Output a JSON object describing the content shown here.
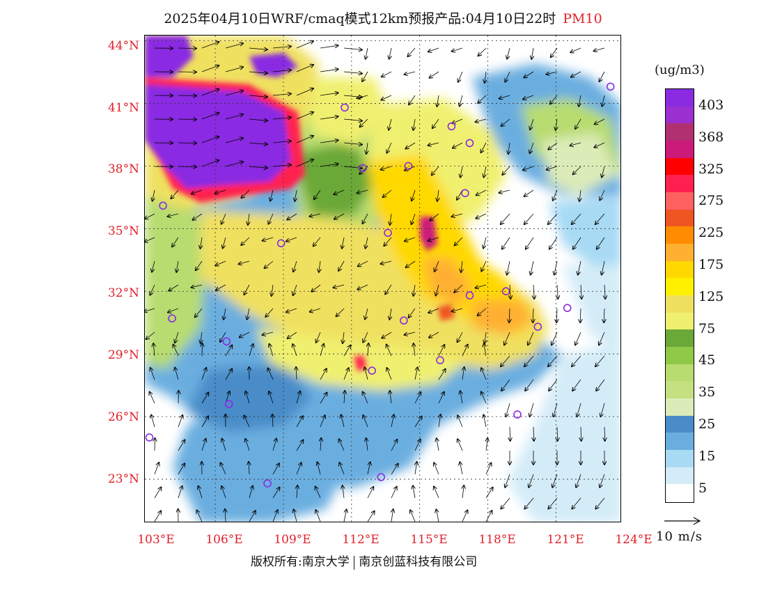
{
  "title": {
    "main": "2025年04月10日WRF/cmaq模式12km预报产品:04月10日22时",
    "pollutant": "PM10"
  },
  "axes": {
    "lat_labels": [
      "44°N",
      "41°N",
      "38°N",
      "35°N",
      "32°N",
      "29°N",
      "26°N",
      "23°N"
    ],
    "lon_labels": [
      "103°E",
      "106°E",
      "109°E",
      "112°E",
      "115°E",
      "118°E",
      "121°E",
      "124°E"
    ]
  },
  "legend": {
    "unit": "(ug/m3)",
    "levels": [
      {
        "label": "403",
        "color": "#8a2be2"
      },
      {
        "label": "368",
        "color": "#b03070"
      },
      {
        "label": "325",
        "color": "#ff1a1a"
      },
      {
        "label": "275",
        "color": "#ff6060"
      },
      {
        "label": "225",
        "color": "#ee5522"
      },
      {
        "label": "175",
        "color": "#ffa020"
      },
      {
        "label": "125",
        "color": "#ffe400"
      },
      {
        "label": "75",
        "color": "#f0f070"
      },
      {
        "label": "45",
        "color": "#68a838"
      },
      {
        "label": "35",
        "color": "#b8dc70"
      },
      {
        "label": "25",
        "color": "#dcecb8"
      },
      {
        "label": "15",
        "color": "#4a8cc8"
      },
      {
        "label": "5",
        "color": "#a8daf4"
      }
    ],
    "swatch_colors": [
      "#8a2be2",
      "#9b30d0",
      "#b03070",
      "#cc1a7a",
      "#ff0000",
      "#ff2050",
      "#ff6060",
      "#ee5522",
      "#ff8c00",
      "#ffb030",
      "#ffd800",
      "#fff000",
      "#f0e060",
      "#f0f070",
      "#6aa838",
      "#90c848",
      "#b8dc70",
      "#c4e080",
      "#dcecb8",
      "#4a8cc8",
      "#6aaee0",
      "#a8daf4",
      "#d4ecf8",
      "#ffffff"
    ]
  },
  "vector_legend": {
    "label": "10 m/s"
  },
  "footer": {
    "left": "版权所有:南京大学",
    "right": "南京创蓝科技有限公司"
  },
  "map": {
    "background": "#ffffff",
    "cities": [
      {
        "lon": 103.1,
        "lat": 25.0
      },
      {
        "lon": 103.7,
        "lat": 36.1
      },
      {
        "lon": 104.1,
        "lat": 30.7
      },
      {
        "lon": 106.5,
        "lat": 29.6
      },
      {
        "lon": 106.6,
        "lat": 26.6
      },
      {
        "lon": 106.3,
        "lat": 38.5
      },
      {
        "lon": 108.9,
        "lat": 34.3
      },
      {
        "lon": 108.3,
        "lat": 22.8
      },
      {
        "lon": 111.7,
        "lat": 40.8
      },
      {
        "lon": 112.5,
        "lat": 37.9
      },
      {
        "lon": 113.6,
        "lat": 34.8
      },
      {
        "lon": 114.5,
        "lat": 38.0
      },
      {
        "lon": 114.3,
        "lat": 30.6
      },
      {
        "lon": 112.9,
        "lat": 28.2
      },
      {
        "lon": 115.9,
        "lat": 28.7
      },
      {
        "lon": 117.2,
        "lat": 31.8
      },
      {
        "lon": 117.0,
        "lat": 36.7
      },
      {
        "lon": 116.4,
        "lat": 39.9
      },
      {
        "lon": 117.2,
        "lat": 39.1
      },
      {
        "lon": 118.8,
        "lat": 32.0
      },
      {
        "lon": 120.2,
        "lat": 30.3
      },
      {
        "lon": 121.5,
        "lat": 31.2
      },
      {
        "lon": 119.3,
        "lat": 26.1
      },
      {
        "lon": 113.3,
        "lat": 23.1
      },
      {
        "lon": 123.4,
        "lat": 41.8
      }
    ]
  }
}
